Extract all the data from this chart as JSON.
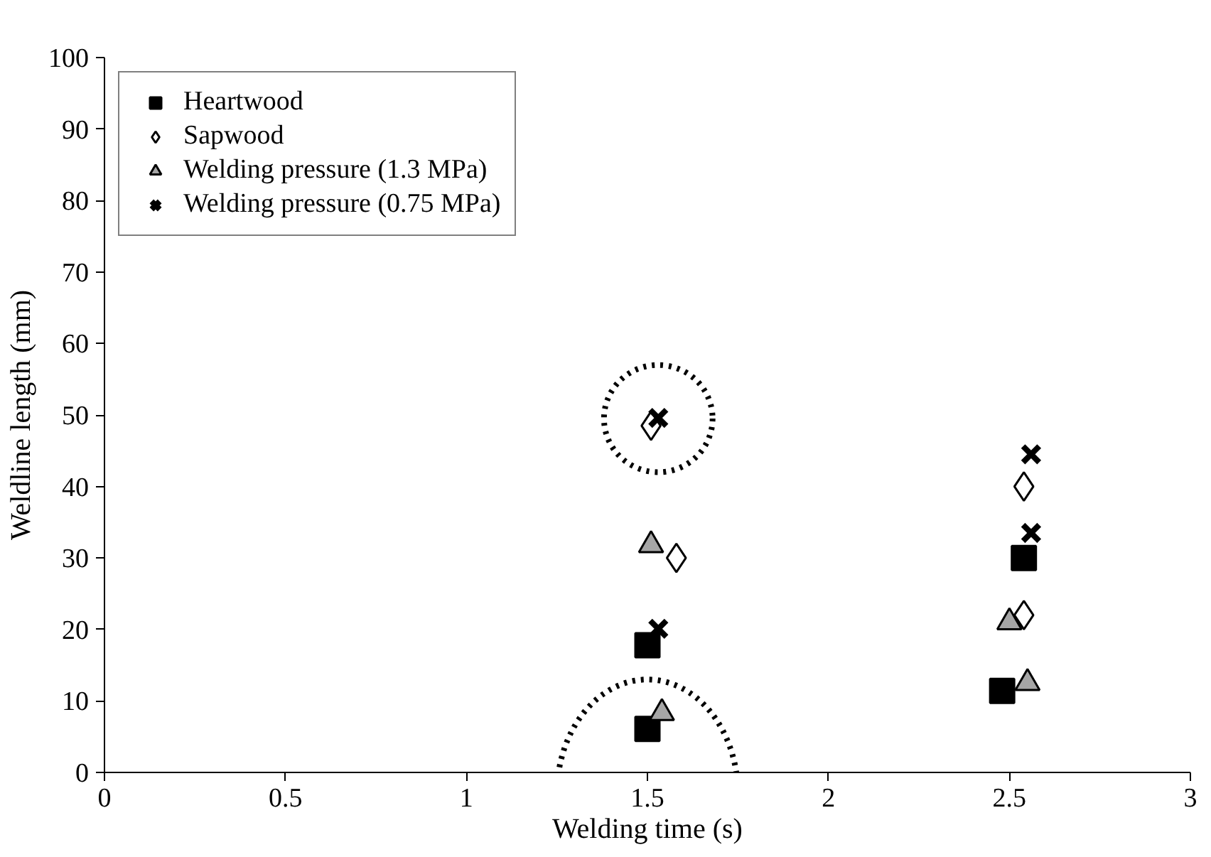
{
  "chart_data": {
    "type": "scatter",
    "xlabel": "Welding time (s)",
    "ylabel": "Weldline length (mm)",
    "xlim": [
      0,
      3
    ],
    "ylim": [
      0,
      100
    ],
    "xticks": [
      0,
      0.5,
      1,
      1.5,
      2,
      2.5,
      3
    ],
    "yticks": [
      0,
      10,
      20,
      30,
      40,
      50,
      60,
      70,
      80,
      90,
      100
    ],
    "grid": false,
    "legend": "top left",
    "series": [
      {
        "name": "Heartwood",
        "color": "#000000",
        "marker": "square",
        "x": [
          1.5,
          1.5,
          2.48,
          2.54
        ],
        "values": [
          6.1,
          17.8,
          11.4,
          30
        ]
      },
      {
        "name": "Sapwood",
        "color": "#ffffff",
        "marker": "diamond",
        "x": [
          1.51,
          1.58,
          2.54,
          2.54
        ],
        "values": [
          48.5,
          30,
          22,
          40
        ]
      },
      {
        "name": "Welding pressure (1.3 MPa)",
        "color": "#a6a6a6",
        "marker": "triangle",
        "x": [
          1.51,
          1.54,
          2.5,
          2.55
        ],
        "values": [
          31.8,
          8.3,
          21,
          12.5
        ]
      },
      {
        "name": "Welding pressure (0.75 MPa)",
        "color": "#000000",
        "marker": "cross",
        "x": [
          1.53,
          1.53,
          2.56,
          2.56
        ],
        "values": [
          49.6,
          20.1,
          44.5,
          33.5
        ]
      }
    ]
  }
}
